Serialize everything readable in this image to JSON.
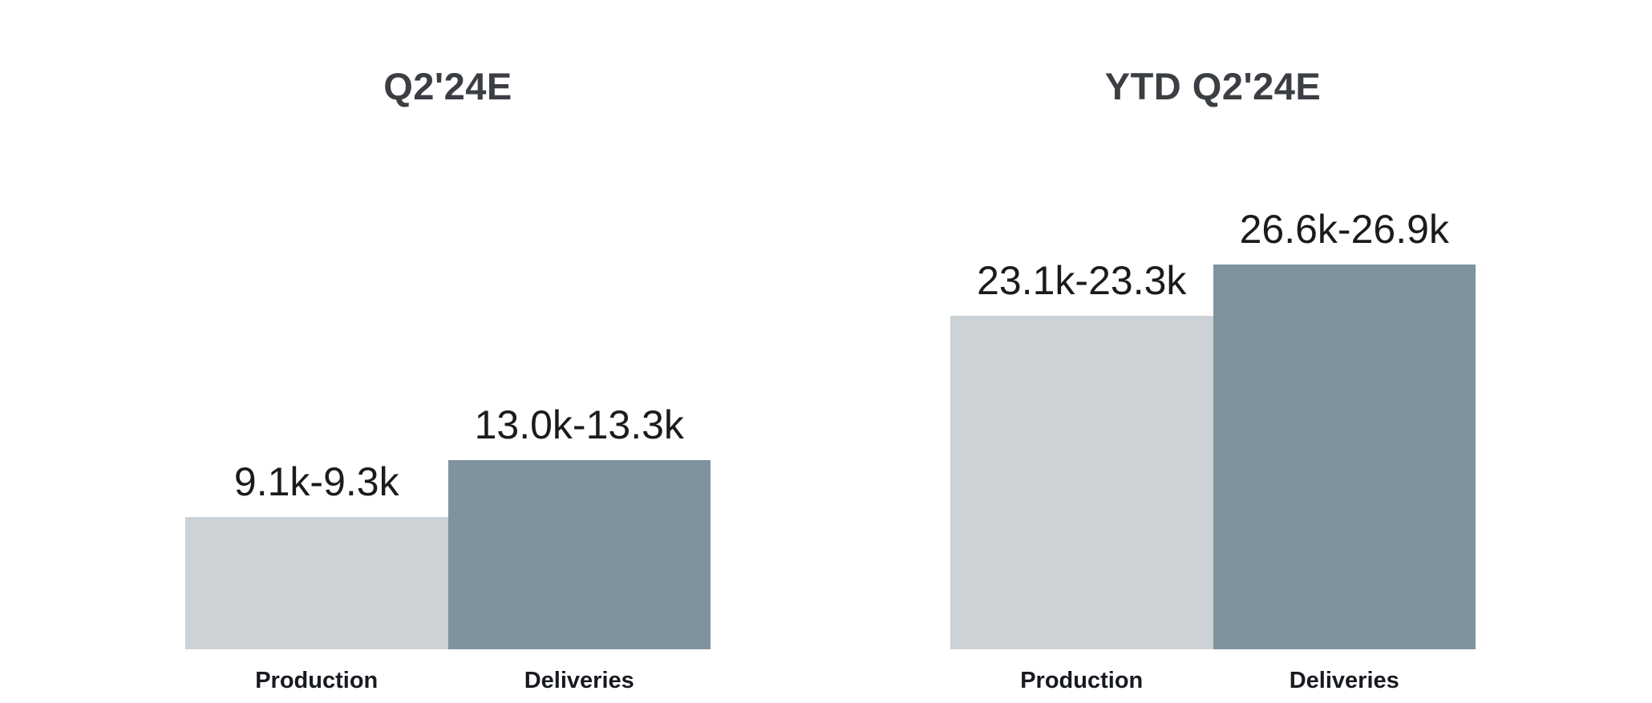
{
  "page": {
    "background": "#ffffff",
    "text_color": "#1b1b1b",
    "title_color": "#3b3e43"
  },
  "chart_data": [
    {
      "type": "bar",
      "title": "Q2'24E",
      "categories": [
        "Production",
        "Deliveries"
      ],
      "values": [
        9200,
        13150
      ],
      "value_ranges": [
        [
          9100,
          9300
        ],
        [
          13000,
          13300
        ]
      ],
      "value_labels": [
        "9.1k-9.3k",
        "13.0k-13.3k"
      ],
      "bar_colors": [
        "#ccd2d5",
        "#7e939e"
      ],
      "xlabel": "",
      "ylabel": "",
      "ylim": [
        0,
        27000
      ],
      "grid": false,
      "legend": "none",
      "y_axis_visible": false
    },
    {
      "type": "bar",
      "title": "YTD Q2'24E",
      "categories": [
        "Production",
        "Deliveries"
      ],
      "values": [
        23200,
        26750
      ],
      "value_ranges": [
        [
          23100,
          23300
        ],
        [
          26600,
          26900
        ]
      ],
      "value_labels": [
        "23.1k-23.3k",
        "26.6k-26.9k"
      ],
      "bar_colors": [
        "#ccd2d5",
        "#7e939e"
      ],
      "xlabel": "",
      "ylabel": "",
      "ylim": [
        0,
        27000
      ],
      "grid": false,
      "legend": "none",
      "y_axis_visible": false
    }
  ]
}
